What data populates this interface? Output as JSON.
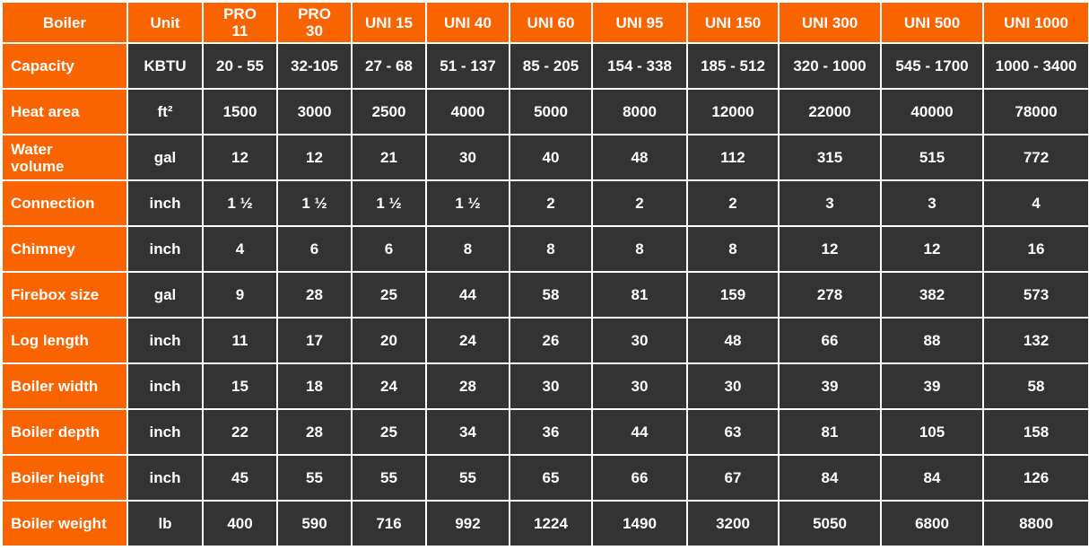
{
  "colors": {
    "accent": "#f96400",
    "cell": "#333333",
    "text": "#ffffff"
  },
  "table": {
    "headers": [
      "Boiler",
      "Unit",
      "PRO 11",
      "PRO 30",
      "UNI 15",
      "UNI 40",
      "UNI 60",
      "UNI 95",
      "UNI 150",
      "UNI 300",
      "UNI 500",
      "UNI 1000"
    ],
    "rows": [
      [
        "Capacity",
        "KBTU",
        "20 - 55",
        "32-105",
        "27 - 68",
        "51 - 137",
        "85 - 205",
        "154 - 338",
        "185 - 512",
        "320 - 1000",
        "545 - 1700",
        "1000 - 3400"
      ],
      [
        "Heat area",
        "ft²",
        "1500",
        "3000",
        "2500",
        "4000",
        "5000",
        "8000",
        "12000",
        "22000",
        "40000",
        "78000"
      ],
      [
        "Water volume",
        "gal",
        "12",
        "12",
        "21",
        "30",
        "40",
        "48",
        "112",
        "315",
        "515",
        "772"
      ],
      [
        "Connection",
        "inch",
        "1 ½",
        "1 ½",
        "1 ½",
        "1 ½",
        "2",
        "2",
        "2",
        "3",
        "3",
        "4"
      ],
      [
        "Chimney",
        "inch",
        "4",
        "6",
        "6",
        "8",
        "8",
        "8",
        "8",
        "12",
        "12",
        "16"
      ],
      [
        "Firebox size",
        "gal",
        "9",
        "28",
        "25",
        "44",
        "58",
        "81",
        "159",
        "278",
        "382",
        "573"
      ],
      [
        "Log length",
        "inch",
        "11",
        "17",
        "20",
        "24",
        "26",
        "30",
        "48",
        "66",
        "88",
        "132"
      ],
      [
        "Boiler width",
        "inch",
        "15",
        "18",
        "24",
        "28",
        "30",
        "30",
        "30",
        "39",
        "39",
        "58"
      ],
      [
        "Boiler depth",
        "inch",
        "22",
        "28",
        "25",
        "34",
        "36",
        "44",
        "63",
        "81",
        "105",
        "158"
      ],
      [
        "Boiler height",
        "inch",
        "45",
        "55",
        "55",
        "55",
        "65",
        "66",
        "67",
        "84",
        "84",
        "126"
      ],
      [
        "Boiler weight",
        "lb",
        "400",
        "590",
        "716",
        "992",
        "1224",
        "1490",
        "3200",
        "5050",
        "6800",
        "8800"
      ]
    ]
  }
}
